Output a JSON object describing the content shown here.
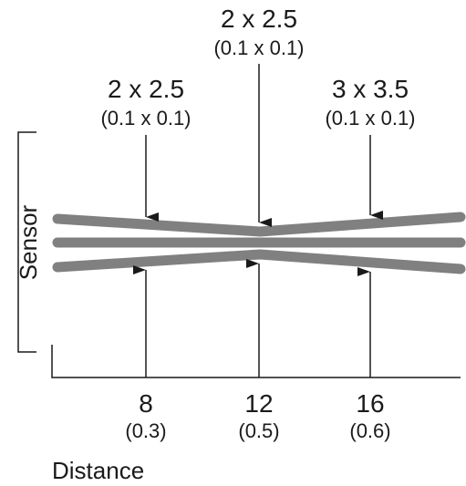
{
  "top_labels": [
    {
      "size": "2 x 2.5",
      "sub": "(0.1 x 0.1)"
    },
    {
      "size": "2 x 2.5",
      "sub": "(0.1 x 0.1)"
    },
    {
      "size": "3 x 3.5",
      "sub": "(0.1 x 0.1)"
    }
  ],
  "distance_labels": [
    {
      "value": "8",
      "sub": "(0.3)"
    },
    {
      "value": "12",
      "sub": "(0.5)"
    },
    {
      "value": "16",
      "sub": "(0.6)"
    }
  ],
  "axis": {
    "y_label": "Sensor",
    "x_label": "Distance"
  },
  "colors": {
    "beam": "#808080",
    "line": "#1a1a1a",
    "text": "#1a1a1a"
  }
}
